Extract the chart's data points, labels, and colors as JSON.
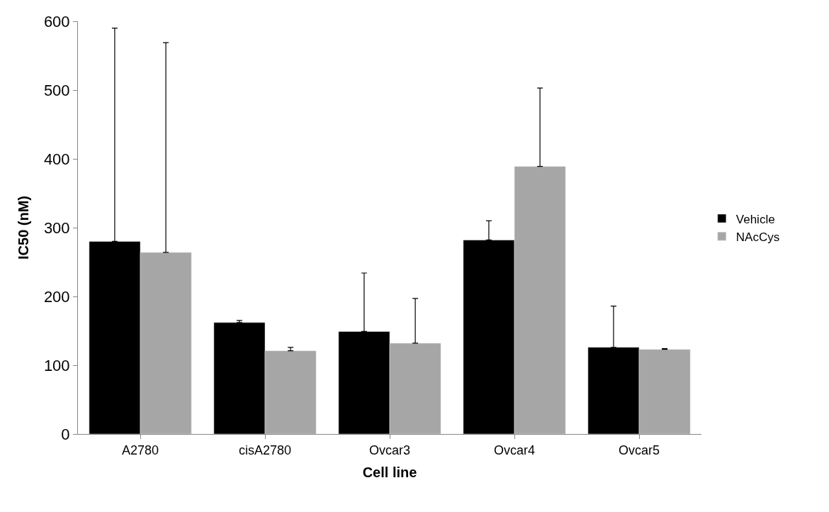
{
  "chart_data": {
    "type": "bar",
    "xlabel": "Cell line",
    "ylabel": "IC50 (nM)",
    "categories": [
      "A2780",
      "cisA2780",
      "Ovcar3",
      "Ovcar4",
      "Ovcar5"
    ],
    "series": [
      {
        "name": "Vehicle",
        "color": "#000000",
        "values": [
          280,
          162,
          149,
          282,
          126
        ],
        "errors": [
          [
            280,
            590
          ],
          [
            162,
            165
          ],
          [
            149,
            234
          ],
          [
            282,
            310
          ],
          [
            126,
            186
          ]
        ]
      },
      {
        "name": "NAcCys",
        "color": "#a6a6a6",
        "values": [
          264,
          121,
          132,
          389,
          123
        ],
        "errors": [
          [
            264,
            569
          ],
          [
            121,
            126
          ],
          [
            132,
            197
          ],
          [
            389,
            503
          ],
          [
            123,
            124
          ]
        ]
      }
    ],
    "ylim": [
      0,
      600
    ],
    "yticks": [
      0,
      100,
      200,
      300,
      400,
      500,
      600
    ],
    "legend": "right"
  }
}
